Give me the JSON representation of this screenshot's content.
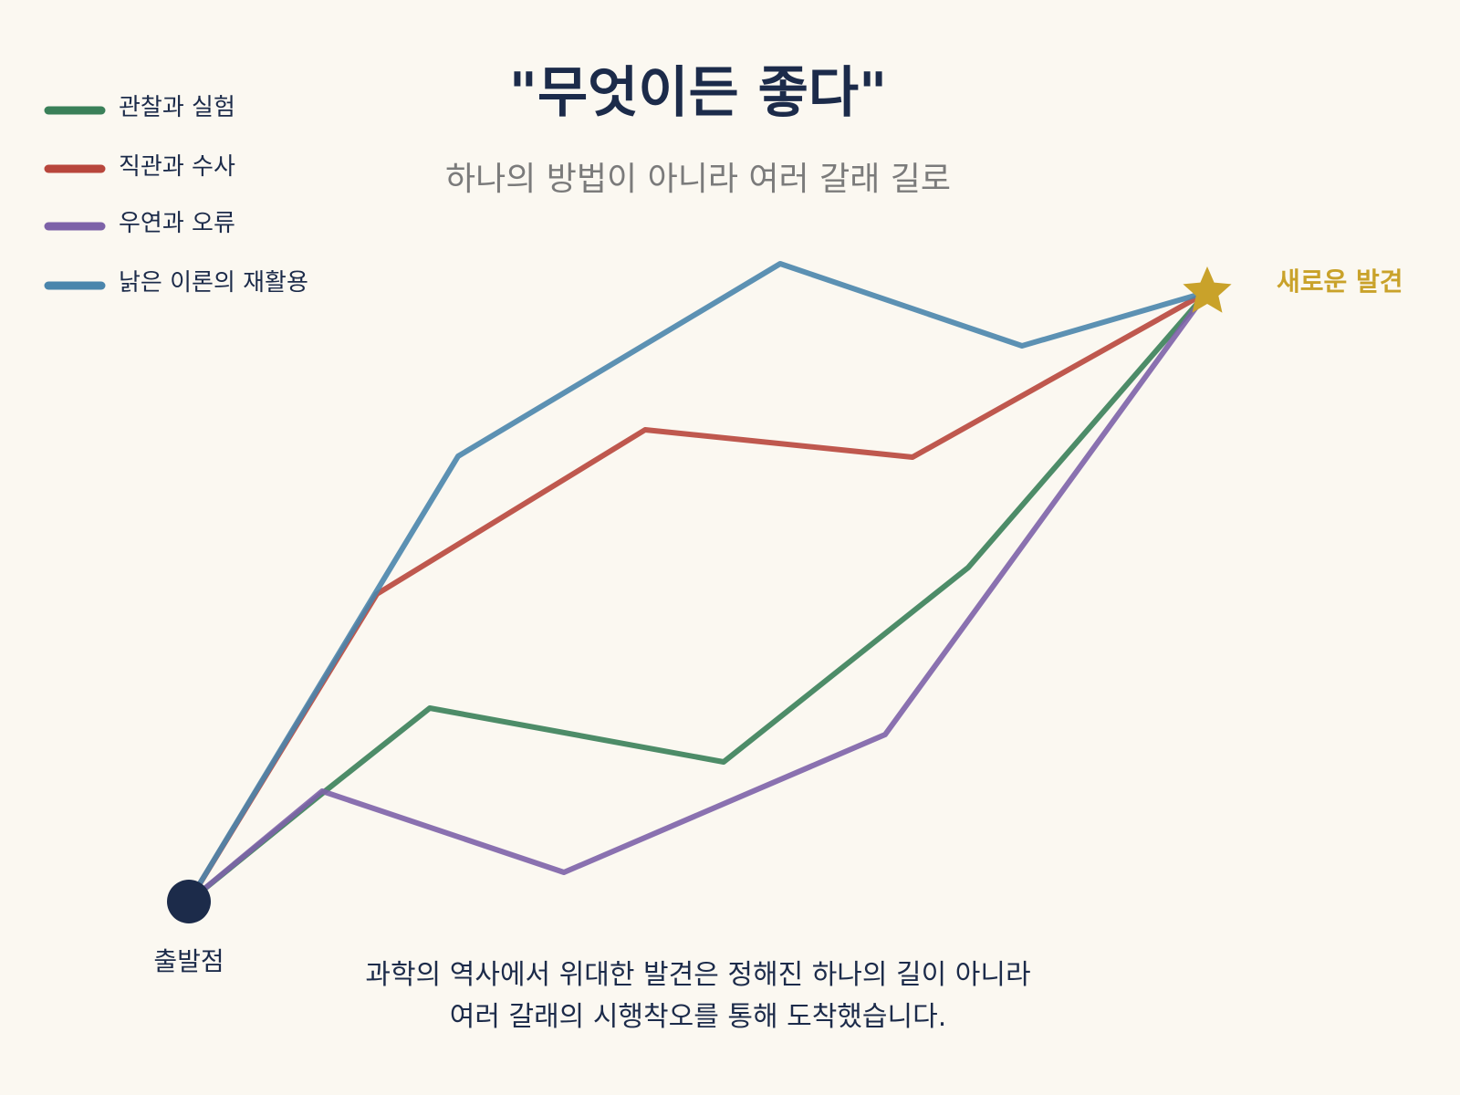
{
  "title": "\"무엇이든 좋다\"",
  "subtitle": "하나의 방법이 아니라 여러 갈래 길로",
  "legend": [
    {
      "label": "관찰과 실험",
      "color": "#3a8059"
    },
    {
      "label": "직관과 수사",
      "color": "#b8463c"
    },
    {
      "label": "우연과 오류",
      "color": "#7d62a8"
    },
    {
      "label": "낡은 이론의 재활용",
      "color": "#4a85ac"
    }
  ],
  "start": {
    "label": "출발점",
    "color": "#1c2b4a"
  },
  "end": {
    "label": "새로운 발견",
    "color": "#c9a22a",
    "icon": "star-icon"
  },
  "caption": {
    "line1": "과학의 역사에서 위대한 발견은 정해진 하나의 길이 아니라",
    "line2": "여러 갈래의 시행착오를 통해 도착했습니다."
  }
}
